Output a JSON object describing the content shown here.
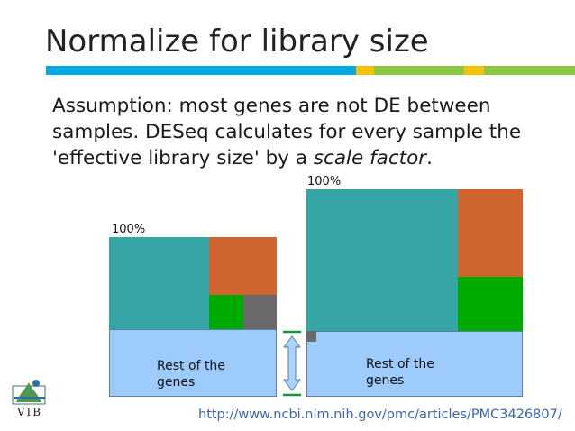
{
  "slide": {
    "title": "Normalize for library size",
    "body_text_plain": "Assumption: most genes are not DE between samples. DESeq calculates for every sample the 'effective library size' by a ",
    "body_text_italic": "scale factor",
    "body_text_end": ".",
    "url": "http://www.ncbi.nlm.nih.gov/pmc/articles/PMC3426807/",
    "logo_text": "VIB"
  },
  "colors": {
    "title_bar": [
      "#00a9e3",
      "#f4c200",
      "#8dc63f"
    ],
    "teal": "#35a5a6",
    "orange": "#d16530",
    "green": "#00ab00",
    "gray": "#6a6a6a",
    "light_blue": "#9dcbfb",
    "arrow_line": "#11983a",
    "arrow_fill": "#a9d3fb"
  },
  "diagram": {
    "left_sample": {
      "percent_label": "100%",
      "rest_label_line1": "Rest of the",
      "rest_label_line2": "genes"
    },
    "right_sample": {
      "percent_label": "100%",
      "rest_label_line1": "Rest of the",
      "rest_label_line2": "genes"
    }
  }
}
